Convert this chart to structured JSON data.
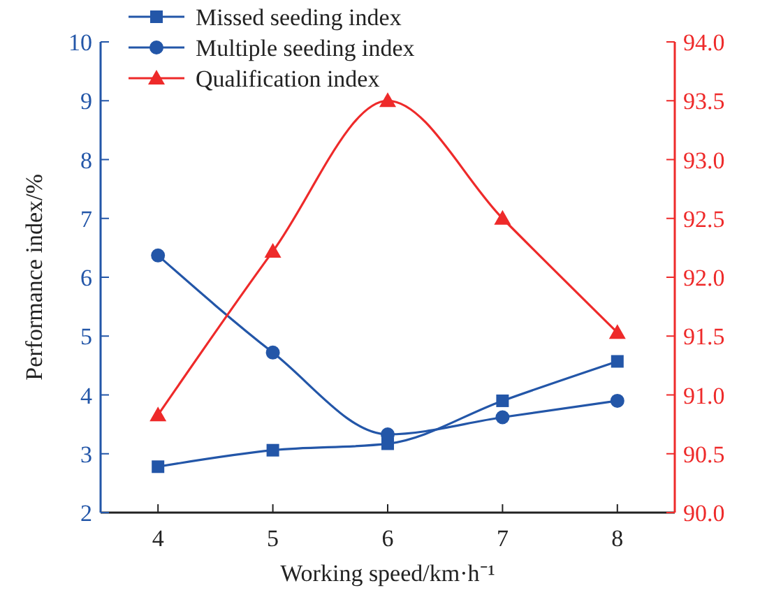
{
  "chart_data": {
    "type": "line",
    "xlabel": "Working speed/km·h⁻¹",
    "ylabel": "Performance index/%",
    "x": [
      4,
      5,
      6,
      7,
      8
    ],
    "xlim": [
      3.5,
      8.5
    ],
    "xticks": [
      4,
      5,
      6,
      7,
      8
    ],
    "ylim": [
      2,
      10
    ],
    "yticks": [
      2,
      3,
      4,
      5,
      6,
      7,
      8,
      9,
      10
    ],
    "y2lim": [
      90,
      94
    ],
    "y2ticks": [
      {
        "value": 90,
        "label": "90.0"
      },
      {
        "value": 90.5,
        "label": "90.5"
      },
      {
        "value": 91,
        "label": "91.0"
      },
      {
        "value": 91.5,
        "label": "91.5"
      },
      {
        "value": 92,
        "label": "92.0"
      },
      {
        "value": 92.5,
        "label": "92.5"
      },
      {
        "value": 93,
        "label": "93.0"
      },
      {
        "value": 93.5,
        "label": "93.5"
      },
      {
        "value": 94,
        "label": "94.0"
      }
    ],
    "legend": "top left",
    "grid": false,
    "series": [
      {
        "name": "Missed seeding index",
        "color": "#2356a8",
        "marker": "square",
        "values": [
          2.78,
          3.06,
          3.17,
          3.9,
          4.57
        ]
      },
      {
        "name": "Multiple seeding index",
        "color": "#2356a8",
        "marker": "circle",
        "values": [
          6.37,
          4.72,
          3.33,
          3.62,
          3.9
        ]
      },
      {
        "name": "Qualification index",
        "color": "#ee2a2a",
        "marker": "triangle",
        "axis": "y2",
        "values": [
          90.83,
          92.22,
          93.5,
          92.5,
          91.53
        ]
      }
    ]
  }
}
